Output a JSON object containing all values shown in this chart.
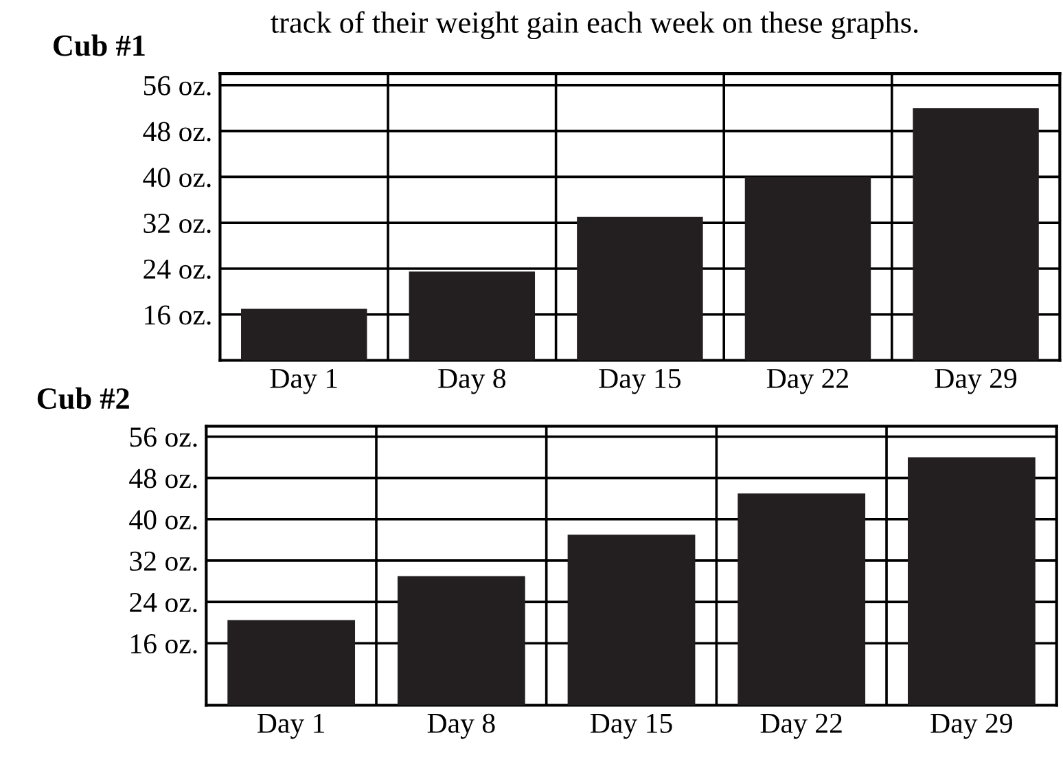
{
  "chart_data": [
    {
      "type": "bar",
      "title": "Cub #1",
      "annotations": [
        "track of their weight gain each week on these graphs."
      ],
      "categories": [
        "Day 1",
        "Day 8",
        "Day 15",
        "Day 22",
        "Day 29"
      ],
      "values": [
        17,
        23.5,
        33,
        40,
        52
      ],
      "color": "#231f20",
      "ylim": [
        8,
        58
      ],
      "yticks": [
        {
          "value": 16,
          "label": "16 oz."
        },
        {
          "value": 24,
          "label": "24 oz."
        },
        {
          "value": 32,
          "label": "32 oz."
        },
        {
          "value": 40,
          "label": "40 oz."
        },
        {
          "value": 48,
          "label": "48 oz."
        },
        {
          "value": 56,
          "label": "56 oz."
        }
      ],
      "grid": true,
      "legend": false
    },
    {
      "type": "bar",
      "title": "Cub #2",
      "categories": [
        "Day 1",
        "Day 8",
        "Day 15",
        "Day 22",
        "Day 29"
      ],
      "values": [
        20.5,
        29,
        37,
        45,
        52
      ],
      "color": "#231f20",
      "ylim": [
        4,
        58
      ],
      "yticks": [
        {
          "value": 16,
          "label": "16 oz."
        },
        {
          "value": 24,
          "label": "24 oz."
        },
        {
          "value": 32,
          "label": "32 oz."
        },
        {
          "value": 40,
          "label": "40 oz."
        },
        {
          "value": 48,
          "label": "48 oz."
        },
        {
          "value": 56,
          "label": "56 oz."
        }
      ],
      "grid": true,
      "legend": false
    }
  ]
}
